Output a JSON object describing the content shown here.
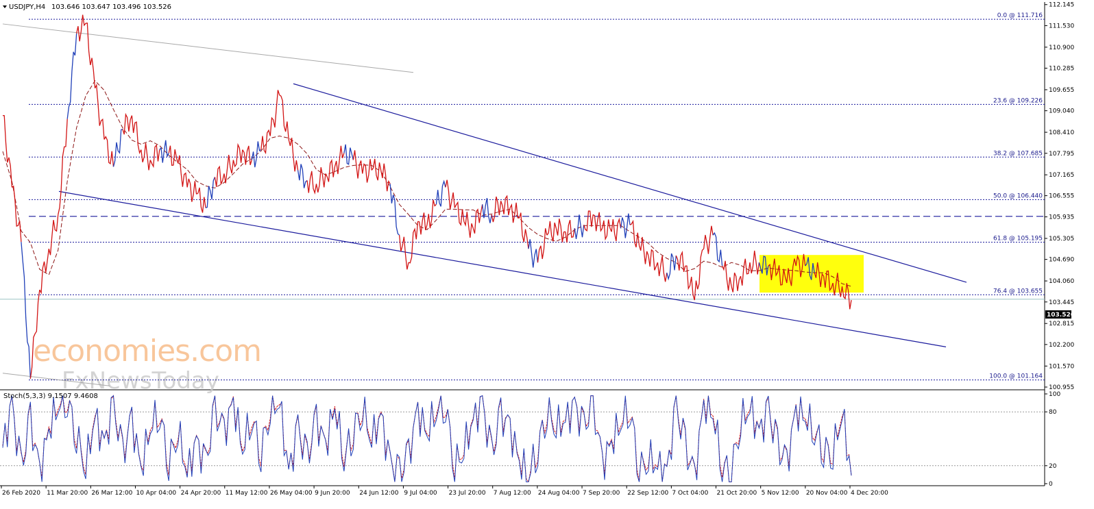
{
  "header": {
    "symbol": "USDJPY,H4",
    "ohlc": "103.646 103.647 103.496 103.526"
  },
  "indicator": {
    "label": "Stoch(5,3,3) 9.1507 9.4608",
    "levels": [
      100,
      80,
      20,
      0
    ],
    "main_color": "#1f3fb8",
    "signal_color": "#d21414"
  },
  "watermark": {
    "line1": "economies.com",
    "line2": "FxNewsToday"
  },
  "colors": {
    "background": "#ffffff",
    "price_line": "#d21414",
    "price_line_alt": "#1f3fb8",
    "ma_line": "#8c1414",
    "trend_line": "#1a1a9c",
    "old_trend_line": "#a8a8a8",
    "fib_line": "#1a1a9c",
    "highlight_box": "#ffff00",
    "current_price_bg": "#000000"
  },
  "chart_data": {
    "type": "line",
    "title": "USDJPY,H4",
    "ylim": [
      100.955,
      112.16
    ],
    "y_ticks": [
      "112.145",
      "111.530",
      "110.900",
      "110.285",
      "109.655",
      "109.040",
      "108.410",
      "107.795",
      "107.165",
      "106.555",
      "105.935",
      "105.305",
      "104.690",
      "104.060",
      "103.445",
      "102.815",
      "102.200",
      "101.570",
      "100.955"
    ],
    "x_labels": [
      "26 Feb 2020",
      "11 Mar 20:00",
      "26 Mar 12:00",
      "10 Apr 04:00",
      "24 Apr 20:00",
      "11 May 12:00",
      "26 May 04:00",
      "9 Jun 20:00",
      "24 Jun 12:00",
      "9 Jul 04:00",
      "23 Jul 20:00",
      "7 Aug 12:00",
      "24 Aug 04:00",
      "7 Sep 20:00",
      "22 Sep 12:00",
      "7 Oct 04:00",
      "21 Oct 20:00",
      "5 Nov 12:00",
      "20 Nov 04:00",
      "4 Dec 20:00"
    ],
    "current_price": "103.526",
    "fibonacci": [
      {
        "label": "0.0 @ 111.716",
        "price": 111.716
      },
      {
        "label": "23.6 @ 109.226",
        "price": 109.226
      },
      {
        "label": "38.2 @ 107.685",
        "price": 107.685
      },
      {
        "label": "50.0 @ 106.440",
        "price": 106.44
      },
      {
        "label": "61.8 @ 105.195",
        "price": 105.195
      },
      {
        "label": "76.4 @ 103.655",
        "price": 103.655
      },
      {
        "label": "100.0 @ 101.164",
        "price": 101.164
      }
    ],
    "resistance_level": 105.95,
    "highlight_zone": {
      "price_high": 104.82,
      "price_low": 103.72,
      "start": "15 Nov",
      "end": "9 Dec"
    },
    "series": [
      {
        "values": [
          [
            0,
            108.9
          ],
          [
            1,
            106.8
          ],
          [
            2,
            105.2
          ],
          [
            3,
            101.2
          ],
          [
            4,
            103.8
          ],
          [
            5,
            105.0
          ],
          [
            6,
            106.0
          ],
          [
            7,
            108.8
          ],
          [
            8,
            111.3
          ],
          [
            9,
            111.6
          ],
          [
            10,
            109.7
          ],
          [
            11,
            108.2
          ],
          [
            12,
            107.4
          ],
          [
            13,
            108.5
          ],
          [
            14,
            108.9
          ],
          [
            15,
            107.9
          ],
          [
            16,
            107.6
          ],
          [
            17,
            107.9
          ],
          [
            18,
            107.8
          ],
          [
            19,
            107.5
          ],
          [
            20,
            106.8
          ],
          [
            21,
            106.6
          ],
          [
            22,
            106.2
          ],
          [
            23,
            107.1
          ],
          [
            24,
            107.2
          ],
          [
            25,
            107.6
          ],
          [
            26,
            107.9
          ],
          [
            27,
            107.6
          ],
          [
            28,
            107.9
          ],
          [
            29,
            108.3
          ],
          [
            30,
            109.5
          ],
          [
            31,
            108.2
          ],
          [
            32,
            107.3
          ],
          [
            33,
            107.0
          ],
          [
            34,
            106.9
          ],
          [
            35,
            107.2
          ],
          [
            36,
            107.4
          ],
          [
            37,
            107.8
          ],
          [
            38,
            107.6
          ],
          [
            39,
            107.2
          ],
          [
            40,
            107.3
          ],
          [
            41,
            107.3
          ],
          [
            42,
            106.9
          ],
          [
            43,
            105.4
          ],
          [
            44,
            104.6
          ],
          [
            45,
            105.8
          ],
          [
            46,
            105.7
          ],
          [
            47,
            106.3
          ],
          [
            48,
            106.8
          ],
          [
            49,
            106.2
          ],
          [
            50,
            105.8
          ],
          [
            51,
            105.6
          ],
          [
            52,
            106.3
          ],
          [
            53,
            106.0
          ],
          [
            54,
            106.4
          ],
          [
            55,
            106.2
          ],
          [
            56,
            105.9
          ],
          [
            57,
            105.0
          ],
          [
            58,
            104.6
          ],
          [
            59,
            105.4
          ],
          [
            60,
            105.6
          ],
          [
            61,
            105.5
          ],
          [
            62,
            105.6
          ],
          [
            63,
            105.7
          ],
          [
            64,
            106.0
          ],
          [
            65,
            105.6
          ],
          [
            66,
            105.5
          ],
          [
            67,
            105.6
          ],
          [
            68,
            105.7
          ],
          [
            69,
            105.1
          ],
          [
            70,
            104.8
          ],
          [
            71,
            104.6
          ],
          [
            72,
            104.3
          ],
          [
            73,
            104.8
          ],
          [
            74,
            104.5
          ],
          [
            75,
            103.5
          ],
          [
            76,
            105.0
          ],
          [
            77,
            105.4
          ],
          [
            78,
            104.5
          ],
          [
            79,
            103.9
          ],
          [
            80,
            104.2
          ],
          [
            81,
            104.6
          ],
          [
            82,
            104.6
          ],
          [
            83,
            104.5
          ],
          [
            84,
            104.3
          ],
          [
            85,
            104.0
          ],
          [
            86,
            104.5
          ],
          [
            87,
            104.5
          ],
          [
            88,
            104.3
          ],
          [
            89,
            104.2
          ],
          [
            90,
            104.0
          ],
          [
            91,
            103.9
          ],
          [
            92,
            103.5
          ]
        ]
      }
    ],
    "stochastic": [
      [
        0,
        40
      ],
      [
        1,
        85
      ],
      [
        2,
        15
      ],
      [
        3,
        70
      ],
      [
        4,
        10
      ],
      [
        5,
        60
      ],
      [
        6,
        90
      ],
      [
        7,
        95
      ],
      [
        8,
        55
      ],
      [
        9,
        20
      ],
      [
        10,
        75
      ],
      [
        11,
        40
      ],
      [
        12,
        88
      ],
      [
        13,
        30
      ],
      [
        14,
        70
      ],
      [
        15,
        15
      ],
      [
        16,
        65
      ],
      [
        17,
        80
      ],
      [
        18,
        25
      ],
      [
        19,
        60
      ],
      [
        20,
        12
      ],
      [
        21,
        45
      ],
      [
        22,
        20
      ],
      [
        23,
        80
      ],
      [
        24,
        55
      ],
      [
        25,
        90
      ],
      [
        26,
        40
      ],
      [
        27,
        75
      ],
      [
        28,
        35
      ],
      [
        29,
        85
      ],
      [
        30,
        92
      ],
      [
        31,
        10
      ],
      [
        32,
        60
      ],
      [
        33,
        25
      ],
      [
        34,
        70
      ],
      [
        35,
        40
      ],
      [
        36,
        88
      ],
      [
        37,
        30
      ],
      [
        38,
        60
      ],
      [
        39,
        85
      ],
      [
        40,
        50
      ],
      [
        41,
        75
      ],
      [
        42,
        20
      ],
      [
        43,
        8
      ],
      [
        44,
        30
      ],
      [
        45,
        80
      ],
      [
        46,
        55
      ],
      [
        47,
        85
      ],
      [
        48,
        90
      ],
      [
        49,
        20
      ],
      [
        50,
        40
      ],
      [
        51,
        70
      ],
      [
        52,
        88
      ],
      [
        53,
        30
      ],
      [
        54,
        75
      ],
      [
        55,
        60
      ],
      [
        56,
        25
      ],
      [
        57,
        10
      ],
      [
        58,
        40
      ],
      [
        59,
        82
      ],
      [
        60,
        65
      ],
      [
        61,
        70
      ],
      [
        62,
        85
      ],
      [
        63,
        60
      ],
      [
        64,
        90
      ],
      [
        65,
        20
      ],
      [
        66,
        45
      ],
      [
        67,
        70
      ],
      [
        68,
        85
      ],
      [
        69,
        15
      ],
      [
        70,
        30
      ],
      [
        71,
        20
      ],
      [
        72,
        10
      ],
      [
        73,
        85
      ],
      [
        74,
        40
      ],
      [
        75,
        5
      ],
      [
        76,
        88
      ],
      [
        77,
        80
      ],
      [
        78,
        20
      ],
      [
        79,
        15
      ],
      [
        80,
        70
      ],
      [
        81,
        85
      ],
      [
        82,
        55
      ],
      [
        83,
        80
      ],
      [
        84,
        40
      ],
      [
        85,
        20
      ],
      [
        86,
        80
      ],
      [
        87,
        75
      ],
      [
        88,
        60
      ],
      [
        89,
        40
      ],
      [
        90,
        35
      ],
      [
        91,
        80
      ],
      [
        92,
        9
      ]
    ]
  }
}
